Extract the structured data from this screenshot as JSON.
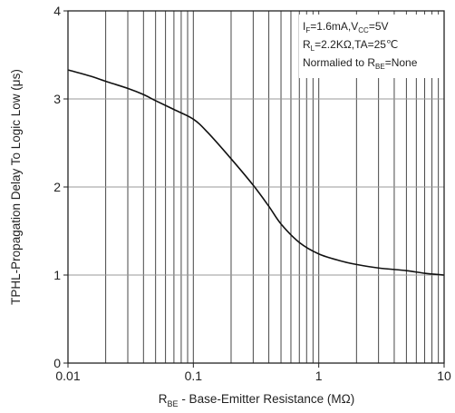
{
  "chart_data": {
    "type": "line",
    "x_scale": "log",
    "xlim": [
      0.01,
      10
    ],
    "ylim": [
      0,
      4
    ],
    "grid": true,
    "xticks": [
      {
        "value": 0.01,
        "label": "0.01"
      },
      {
        "value": 0.1,
        "label": "0.1"
      },
      {
        "value": 1,
        "label": "1"
      },
      {
        "value": 10,
        "label": "10"
      }
    ],
    "yticks": [
      {
        "value": 0,
        "label": "0"
      },
      {
        "value": 1,
        "label": "1"
      },
      {
        "value": 2,
        "label": "2"
      },
      {
        "value": 3,
        "label": "3"
      },
      {
        "value": 4,
        "label": "4"
      }
    ],
    "xlabel": {
      "main": "R",
      "sub": "BE",
      "rest": " - Base-Emitter Resistance (MΩ)"
    },
    "ylabel": "TPHL-Propagation Delay To Logic Low (μs)",
    "legend_placement": "top-right",
    "legend": [
      {
        "parts": [
          [
            "I",
            ""
          ],
          [
            "F",
            "sub"
          ],
          [
            "=1.6mA,V",
            ""
          ],
          [
            "CC",
            "sub"
          ],
          [
            "=5V",
            ""
          ]
        ]
      },
      {
        "parts": [
          [
            "R",
            ""
          ],
          [
            "L",
            "sub"
          ],
          [
            "=2.2KΩ,TA=25℃",
            ""
          ]
        ]
      },
      {
        "parts": [
          [
            "Normalied to R",
            ""
          ],
          [
            "BE",
            "sub"
          ],
          [
            "=None",
            ""
          ]
        ]
      }
    ],
    "series": [
      {
        "x": [
          0.01,
          0.015,
          0.02,
          0.03,
          0.04,
          0.05,
          0.07,
          0.1,
          0.13,
          0.2,
          0.3,
          0.4,
          0.5,
          0.7,
          1,
          1.5,
          2,
          3,
          5,
          7,
          10
        ],
        "y": [
          3.33,
          3.26,
          3.2,
          3.12,
          3.05,
          2.98,
          2.88,
          2.77,
          2.62,
          2.32,
          2.02,
          1.78,
          1.58,
          1.37,
          1.24,
          1.16,
          1.12,
          1.08,
          1.05,
          1.02,
          1.0
        ]
      }
    ]
  }
}
